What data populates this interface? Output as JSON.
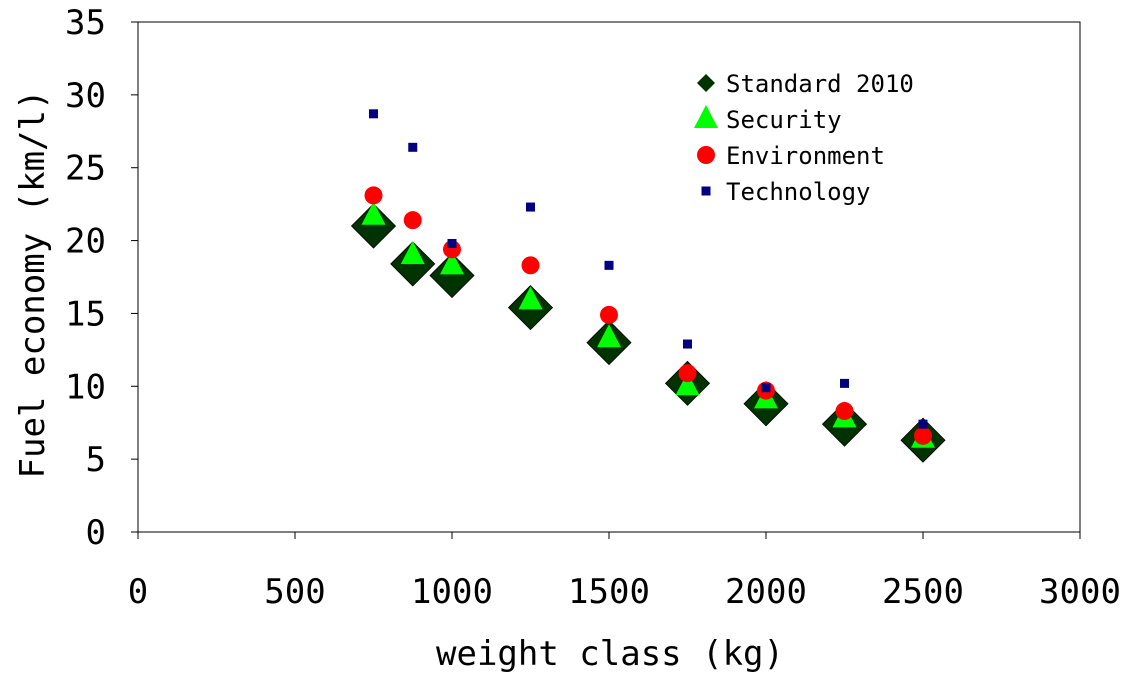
{
  "chart_data": {
    "type": "scatter",
    "title": "",
    "xlabel": "weight class (kg)",
    "ylabel": "Fuel economy (km/l)",
    "xlim": [
      0,
      3000
    ],
    "ylim": [
      0,
      35
    ],
    "x_ticks": [
      0,
      500,
      1000,
      1500,
      2000,
      2500,
      3000
    ],
    "y_ticks": [
      0,
      5,
      10,
      15,
      20,
      25,
      30,
      35
    ],
    "grid": false,
    "legend_position": "top-right",
    "series": [
      {
        "name": "Standard 2010",
        "marker": "diamond",
        "color": "#003300",
        "points": [
          {
            "x": 750,
            "y": 21.0
          },
          {
            "x": 875,
            "y": 18.4
          },
          {
            "x": 1000,
            "y": 17.6
          },
          {
            "x": 1250,
            "y": 15.4
          },
          {
            "x": 1500,
            "y": 13.0
          },
          {
            "x": 1750,
            "y": 10.2
          },
          {
            "x": 2000,
            "y": 8.8
          },
          {
            "x": 2250,
            "y": 7.4
          },
          {
            "x": 2500,
            "y": 6.3
          }
        ]
      },
      {
        "name": "Security",
        "marker": "triangle",
        "color": "#00ff00",
        "points": [
          {
            "x": 750,
            "y": 21.7
          },
          {
            "x": 875,
            "y": 19.0
          },
          {
            "x": 1000,
            "y": 18.3
          },
          {
            "x": 1250,
            "y": 15.9
          },
          {
            "x": 1500,
            "y": 13.3
          },
          {
            "x": 1750,
            "y": 10.0
          },
          {
            "x": 2000,
            "y": 9.1
          },
          {
            "x": 2250,
            "y": 7.8
          },
          {
            "x": 2500,
            "y": 6.4
          }
        ]
      },
      {
        "name": "Environment",
        "marker": "circle",
        "color": "#ff0000",
        "points": [
          {
            "x": 750,
            "y": 23.1
          },
          {
            "x": 875,
            "y": 21.4
          },
          {
            "x": 1000,
            "y": 19.4
          },
          {
            "x": 1250,
            "y": 18.3
          },
          {
            "x": 1500,
            "y": 14.9
          },
          {
            "x": 1750,
            "y": 10.9
          },
          {
            "x": 2000,
            "y": 9.7
          },
          {
            "x": 2250,
            "y": 8.3
          },
          {
            "x": 2500,
            "y": 6.6
          }
        ]
      },
      {
        "name": "Technology",
        "marker": "square",
        "color": "#000080",
        "points": [
          {
            "x": 750,
            "y": 28.7
          },
          {
            "x": 875,
            "y": 26.4
          },
          {
            "x": 1000,
            "y": 19.8
          },
          {
            "x": 1250,
            "y": 22.3
          },
          {
            "x": 1500,
            "y": 18.3
          },
          {
            "x": 1750,
            "y": 12.9
          },
          {
            "x": 2000,
            "y": 9.9
          },
          {
            "x": 2250,
            "y": 10.2
          },
          {
            "x": 2500,
            "y": 7.4
          }
        ]
      }
    ]
  }
}
